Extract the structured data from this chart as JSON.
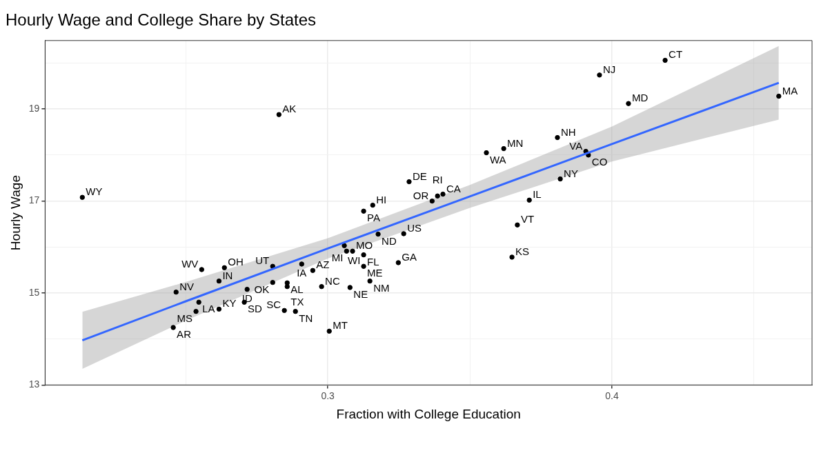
{
  "chart_data": {
    "type": "scatter",
    "title": "Hourly Wage and College Share by States",
    "xlabel": "Fraction with College Education",
    "ylabel": "Hourly Wage",
    "xlim": [
      0.2005,
      0.4704
    ],
    "ylim": [
      13,
      20.49
    ],
    "xticks": [
      {
        "value": 0.25,
        "label": null
      },
      0.3,
      {
        "value": 0.35,
        "label": null
      },
      0.4,
      {
        "value": 0.45,
        "label": null
      }
    ],
    "yticks": [
      13,
      {
        "value": 14,
        "label": null
      },
      15,
      {
        "value": 16,
        "label": null
      },
      17,
      {
        "value": 18,
        "label": null
      },
      19,
      {
        "value": 20,
        "label": null
      }
    ],
    "grid": true,
    "legend": false,
    "series": [
      {
        "type": "scatter",
        "color": "#000000",
        "marker": "circle",
        "x": [
          0.2136,
          0.2828,
          0.3956,
          0.4187,
          0.4058,
          0.4587,
          0.3808,
          0.3558,
          0.3619,
          0.3908,
          0.3917,
          0.3818,
          0.3709,
          0.3667,
          0.3648,
          0.3286,
          0.3367,
          0.3405,
          0.3386,
          0.3126,
          0.3158,
          0.3177,
          0.3267,
          0.3058,
          0.3066,
          0.3087,
          0.3126,
          0.3126,
          0.3248,
          0.3148,
          0.3078,
          0.2978,
          0.2947,
          0.2908,
          0.2806,
          0.2806,
          0.2857,
          0.2857,
          0.2466,
          0.2556,
          0.2636,
          0.2617,
          0.2546,
          0.2536,
          0.2617,
          0.2706,
          0.2716,
          0.2456,
          0.2847,
          0.2886,
          0.3005
        ],
        "values": [
          17.08,
          18.88,
          19.74,
          20.06,
          19.12,
          19.28,
          18.38,
          18.05,
          18.14,
          18.08,
          18.0,
          17.48,
          17.02,
          16.48,
          15.78,
          17.42,
          17.0,
          17.15,
          17.11,
          16.78,
          16.91,
          16.28,
          16.29,
          16.03,
          15.91,
          15.91,
          15.83,
          15.58,
          15.66,
          15.26,
          15.12,
          15.14,
          15.49,
          15.63,
          15.58,
          15.23,
          15.22,
          15.14,
          15.02,
          15.51,
          15.55,
          15.26,
          14.8,
          14.6,
          14.65,
          14.8,
          15.08,
          14.25,
          14.62,
          14.6,
          14.17
        ],
        "value_labels": [
          "WY",
          "AK",
          "NJ",
          "CT",
          "MD",
          "MA",
          "NH",
          "WA",
          "MN",
          "VA",
          "CO",
          "NY",
          "IL",
          "VT",
          "KS",
          "DE",
          "OR",
          "CA",
          "RI",
          "PA",
          "HI",
          "ND",
          "US",
          "WI",
          "MI",
          "MO",
          "FL",
          "ME",
          "GA",
          "NM",
          "NE",
          "NC",
          "AZ",
          "IA",
          "UT",
          "OK",
          "AL",
          "TX",
          "NV",
          "WV",
          "OH",
          "IN",
          "LA",
          "MS",
          "KY",
          "SD",
          "ID",
          "AR",
          "SC",
          "TN",
          "MT"
        ]
      },
      {
        "type": "line",
        "color": "#3366ff",
        "marker": "none",
        "line_style": "solid",
        "x": [
          0.2136,
          0.25,
          0.3,
          0.35,
          0.4,
          0.4587
        ],
        "values": [
          13.97,
          14.82,
          15.97,
          17.1,
          18.24,
          19.57
        ],
        "lower": [
          13.35,
          14.4,
          15.75,
          16.85,
          17.86,
          18.77
        ],
        "upper": [
          14.59,
          15.24,
          16.19,
          17.35,
          18.62,
          20.37
        ]
      }
    ]
  }
}
